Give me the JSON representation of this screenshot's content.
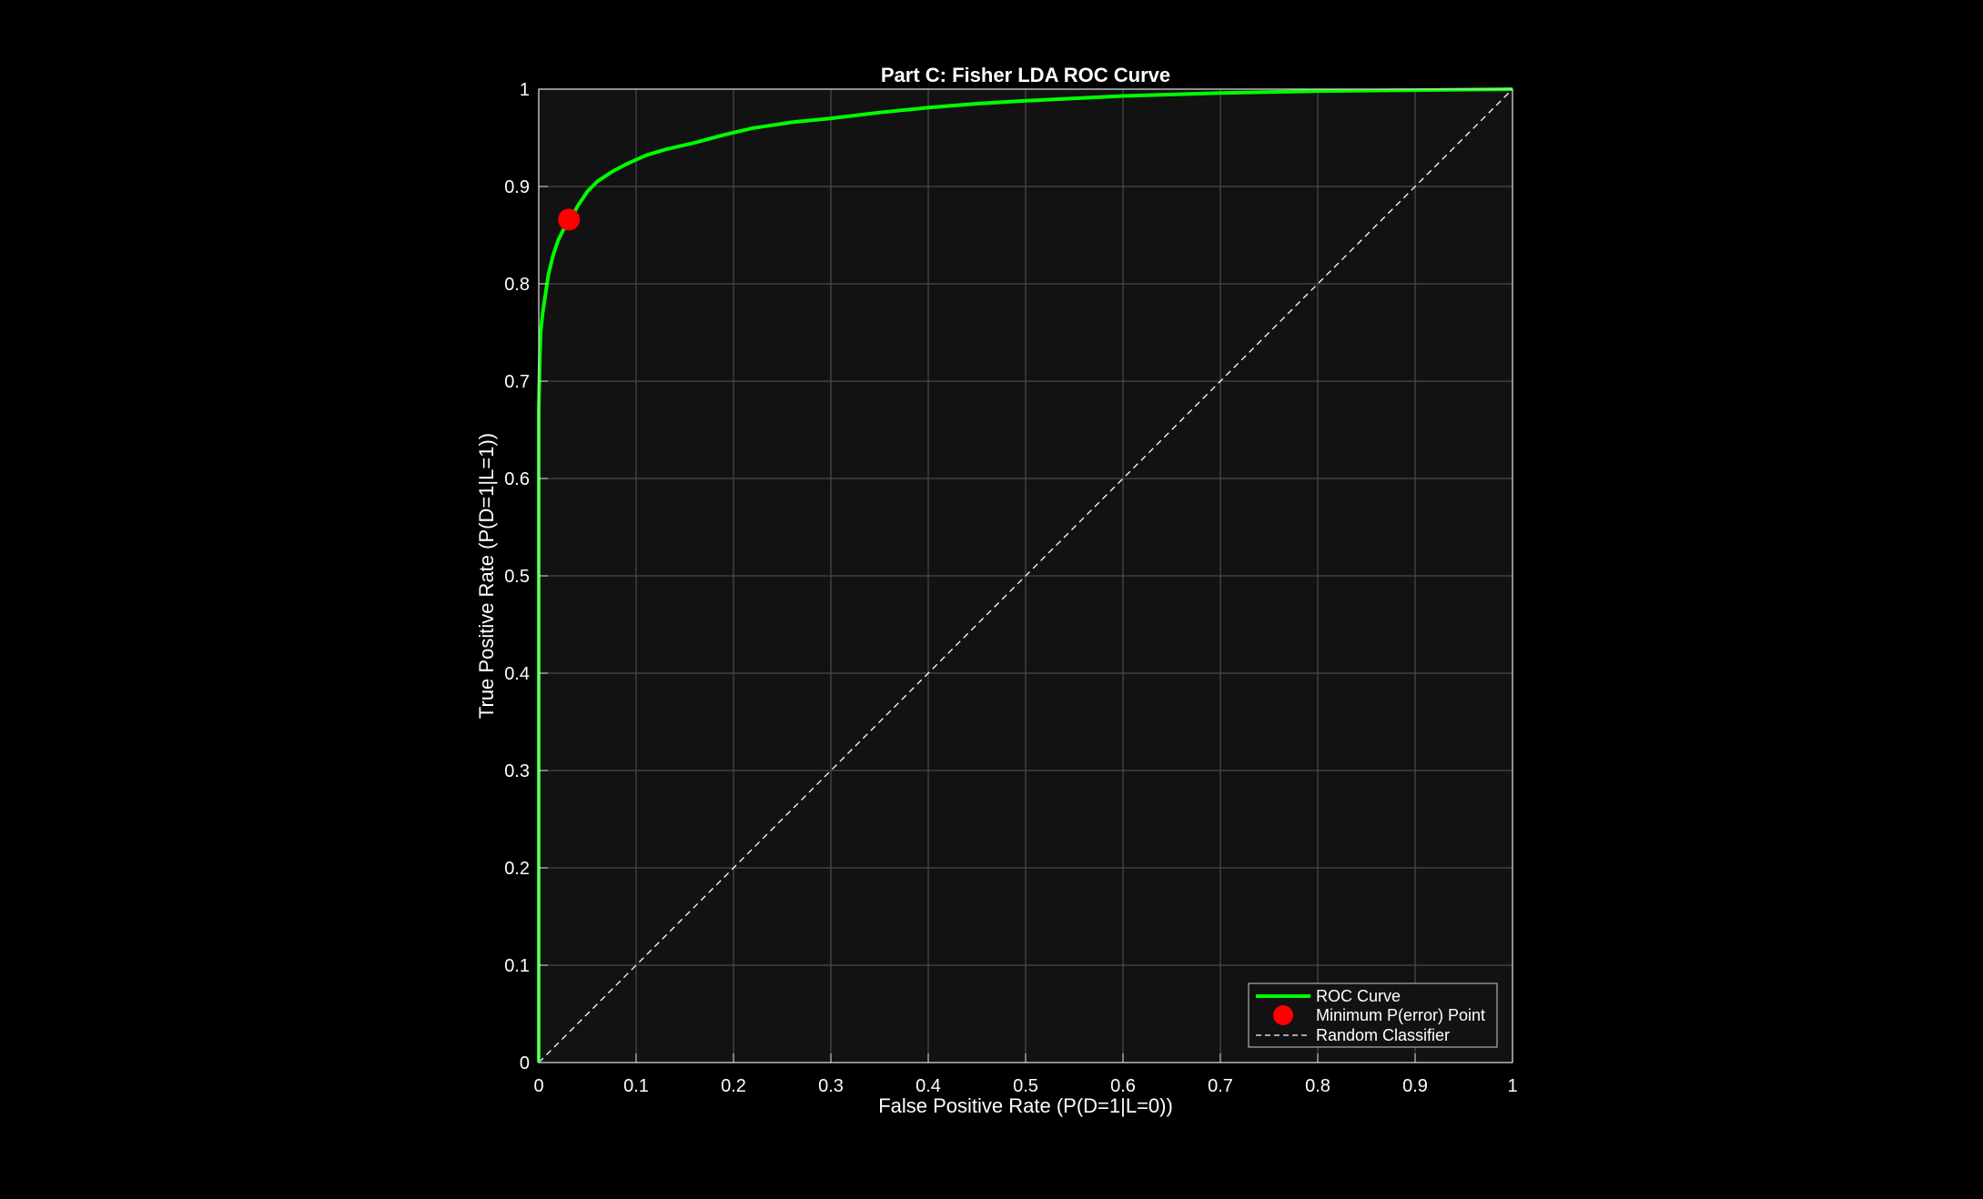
{
  "chart_data": {
    "type": "line",
    "title": "Part C: Fisher LDA ROC Curve",
    "xlabel": "False Positive Rate (P(D=1|L=0))",
    "ylabel": "True Positive Rate (P(D=1|L=1))",
    "xlim": [
      0,
      1
    ],
    "ylim": [
      0,
      1
    ],
    "xticks": [
      "0",
      "0.1",
      "0.2",
      "0.3",
      "0.4",
      "0.5",
      "0.6",
      "0.7",
      "0.8",
      "0.9",
      "1"
    ],
    "yticks": [
      "0",
      "0.1",
      "0.2",
      "0.3",
      "0.4",
      "0.5",
      "0.6",
      "0.7",
      "0.8",
      "0.9",
      "1"
    ],
    "grid": true,
    "legend_position": "bottom-right",
    "series": [
      {
        "name": "ROC Curve",
        "color": "#00ff00",
        "style": "solid",
        "x": [
          0,
          0,
          0.001,
          0.002,
          0.004,
          0.007,
          0.01,
          0.015,
          0.02,
          0.025,
          0.032,
          0.04,
          0.05,
          0.06,
          0.075,
          0.09,
          0.11,
          0.13,
          0.16,
          0.19,
          0.22,
          0.26,
          0.3,
          0.35,
          0.4,
          0.45,
          0.5,
          0.6,
          0.7,
          0.8,
          0.9,
          1
        ],
        "y": [
          0,
          0.67,
          0.72,
          0.75,
          0.77,
          0.79,
          0.81,
          0.83,
          0.845,
          0.855,
          0.865,
          0.88,
          0.895,
          0.905,
          0.915,
          0.923,
          0.932,
          0.938,
          0.945,
          0.953,
          0.96,
          0.966,
          0.97,
          0.976,
          0.981,
          0.985,
          0.988,
          0.993,
          0.996,
          0.998,
          0.999,
          1
        ]
      },
      {
        "name": "Minimum P(error) Point",
        "color": "#ff0000",
        "style": "marker",
        "x": [
          0.031
        ],
        "y": [
          0.866
        ]
      },
      {
        "name": "Random Classifier",
        "color": "#ffffff",
        "style": "dashed",
        "x": [
          0,
          1
        ],
        "y": [
          0,
          1
        ]
      }
    ]
  }
}
